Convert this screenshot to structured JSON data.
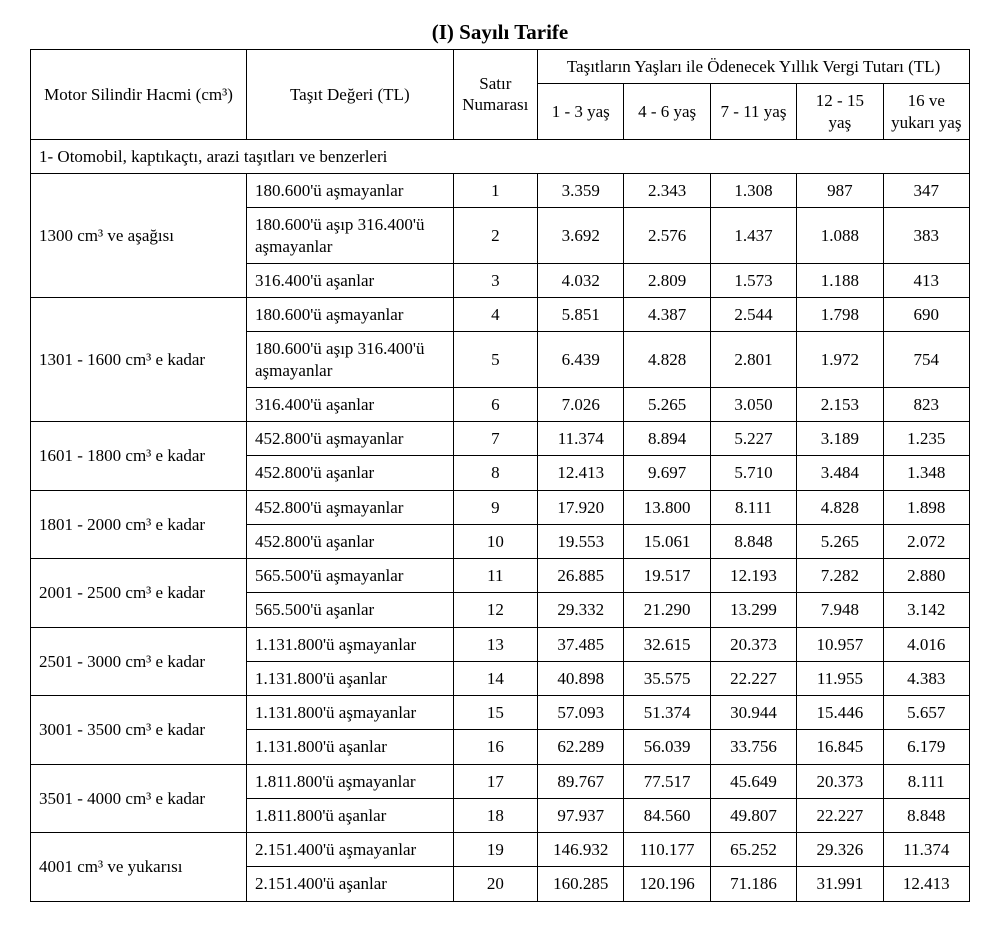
{
  "title": "(I) Sayılı Tarife",
  "headers": {
    "engine": "Motor Silindir Hacmi (cm³)",
    "value": "Taşıt Değeri (TL)",
    "row_no": "Satır Numarası",
    "age_group_title": "Taşıtların Yaşları ile Ödenecek Yıllık Vergi Tutarı (TL)",
    "ages": [
      "1 - 3 yaş",
      "4 - 6 yaş",
      "7 - 11 yaş",
      "12 - 15 yaş",
      "16 ve yukarı yaş"
    ]
  },
  "section": "1- Otomobil, kaptıkaçtı, arazi taşıtları ve benzerleri",
  "groups": [
    {
      "engine": "1300 cm³ ve aşağısı",
      "rows": [
        {
          "value": "180.600'ü aşmayanlar",
          "no": "1",
          "c": [
            "3.359",
            "2.343",
            "1.308",
            "987",
            "347"
          ]
        },
        {
          "value": "180.600'ü aşıp 316.400'ü aşmayanlar",
          "no": "2",
          "c": [
            "3.692",
            "2.576",
            "1.437",
            "1.088",
            "383"
          ]
        },
        {
          "value": "316.400'ü aşanlar",
          "no": "3",
          "c": [
            "4.032",
            "2.809",
            "1.573",
            "1.188",
            "413"
          ]
        }
      ]
    },
    {
      "engine": "1301 - 1600 cm³ e kadar",
      "rows": [
        {
          "value": "180.600'ü aşmayanlar",
          "no": "4",
          "c": [
            "5.851",
            "4.387",
            "2.544",
            "1.798",
            "690"
          ]
        },
        {
          "value": "180.600'ü aşıp 316.400'ü aşmayanlar",
          "no": "5",
          "c": [
            "6.439",
            "4.828",
            "2.801",
            "1.972",
            "754"
          ]
        },
        {
          "value": "316.400'ü aşanlar",
          "no": "6",
          "c": [
            "7.026",
            "5.265",
            "3.050",
            "2.153",
            "823"
          ]
        }
      ]
    },
    {
      "engine": "1601 - 1800 cm³ e kadar",
      "rows": [
        {
          "value": "452.800'ü aşmayanlar",
          "no": "7",
          "c": [
            "11.374",
            "8.894",
            "5.227",
            "3.189",
            "1.235"
          ]
        },
        {
          "value": "452.800'ü aşanlar",
          "no": "8",
          "c": [
            "12.413",
            "9.697",
            "5.710",
            "3.484",
            "1.348"
          ]
        }
      ]
    },
    {
      "engine": "1801 - 2000 cm³ e kadar",
      "rows": [
        {
          "value": "452.800'ü aşmayanlar",
          "no": "9",
          "c": [
            "17.920",
            "13.800",
            "8.111",
            "4.828",
            "1.898"
          ]
        },
        {
          "value": "452.800'ü aşanlar",
          "no": "10",
          "c": [
            "19.553",
            "15.061",
            "8.848",
            "5.265",
            "2.072"
          ]
        }
      ]
    },
    {
      "engine": "2001 - 2500 cm³ e kadar",
      "rows": [
        {
          "value": "565.500'ü aşmayanlar",
          "no": "11",
          "c": [
            "26.885",
            "19.517",
            "12.193",
            "7.282",
            "2.880"
          ]
        },
        {
          "value": "565.500'ü aşanlar",
          "no": "12",
          "c": [
            "29.332",
            "21.290",
            "13.299",
            "7.948",
            "3.142"
          ]
        }
      ]
    },
    {
      "engine": "2501 - 3000 cm³ e kadar",
      "rows": [
        {
          "value": "1.131.800'ü aşmayanlar",
          "no": "13",
          "c": [
            "37.485",
            "32.615",
            "20.373",
            "10.957",
            "4.016"
          ]
        },
        {
          "value": "1.131.800'ü aşanlar",
          "no": "14",
          "c": [
            "40.898",
            "35.575",
            "22.227",
            "11.955",
            "4.383"
          ]
        }
      ]
    },
    {
      "engine": "3001 - 3500 cm³ e kadar",
      "rows": [
        {
          "value": "1.131.800'ü aşmayanlar",
          "no": "15",
          "c": [
            "57.093",
            "51.374",
            "30.944",
            "15.446",
            "5.657"
          ]
        },
        {
          "value": "1.131.800'ü aşanlar",
          "no": "16",
          "c": [
            "62.289",
            "56.039",
            "33.756",
            "16.845",
            "6.179"
          ]
        }
      ]
    },
    {
      "engine": "3501 - 4000 cm³ e kadar",
      "rows": [
        {
          "value": "1.811.800'ü aşmayanlar",
          "no": "17",
          "c": [
            "89.767",
            "77.517",
            "45.649",
            "20.373",
            "8.111"
          ]
        },
        {
          "value": "1.811.800'ü aşanlar",
          "no": "18",
          "c": [
            "97.937",
            "84.560",
            "49.807",
            "22.227",
            "8.848"
          ]
        }
      ]
    },
    {
      "engine": "4001 cm³ ve yukarısı",
      "rows": [
        {
          "value": "2.151.400'ü aşmayanlar",
          "no": "19",
          "c": [
            "146.932",
            "110.177",
            "65.252",
            "29.326",
            "11.374"
          ]
        },
        {
          "value": "2.151.400'ü aşanlar",
          "no": "20",
          "c": [
            "160.285",
            "120.196",
            "71.186",
            "31.991",
            "12.413"
          ]
        }
      ]
    }
  ],
  "style": {
    "font_family": "Times New Roman",
    "border_color": "#000000",
    "background": "#ffffff",
    "text_color": "#000000"
  }
}
